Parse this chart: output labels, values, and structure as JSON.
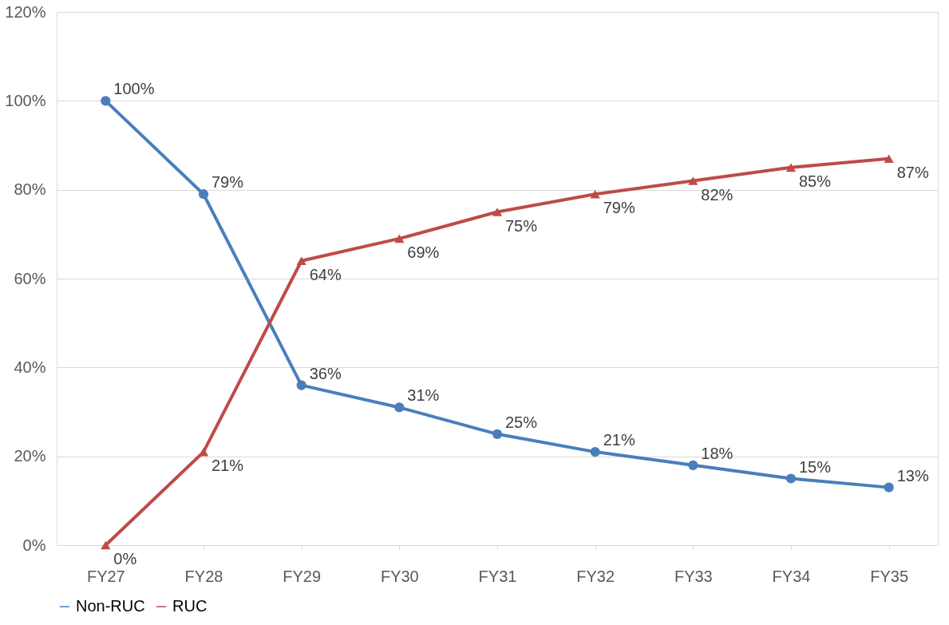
{
  "chart_data": {
    "type": "line",
    "categories": [
      "FY27",
      "FY28",
      "FY29",
      "FY30",
      "FY31",
      "FY32",
      "FY33",
      "FY34",
      "FY35"
    ],
    "series": [
      {
        "name": "Non-RUC",
        "color": "#4a7ebb",
        "marker": "circle",
        "values": [
          100,
          79,
          36,
          31,
          25,
          21,
          18,
          15,
          13
        ],
        "value_labels": [
          "100%",
          "79%",
          "36%",
          "31%",
          "25%",
          "21%",
          "18%",
          "15%",
          "13%"
        ]
      },
      {
        "name": "RUC",
        "color": "#be4b48",
        "marker": "triangle",
        "values": [
          0,
          21,
          64,
          69,
          75,
          79,
          82,
          85,
          87
        ],
        "value_labels": [
          "0%",
          "21%",
          "64%",
          "69%",
          "75%",
          "79%",
          "82%",
          "85%",
          "87%"
        ]
      }
    ],
    "ylim": [
      0,
      120
    ],
    "yticks": [
      {
        "value": 0,
        "label": "0%"
      },
      {
        "value": 20,
        "label": "20%"
      },
      {
        "value": 40,
        "label": "40%"
      },
      {
        "value": 60,
        "label": "60%"
      },
      {
        "value": 80,
        "label": "80%"
      },
      {
        "value": 100,
        "label": "100%"
      },
      {
        "value": 120,
        "label": "120%"
      }
    ],
    "grid": "y",
    "legend": "bottom",
    "line_style": "solid"
  }
}
